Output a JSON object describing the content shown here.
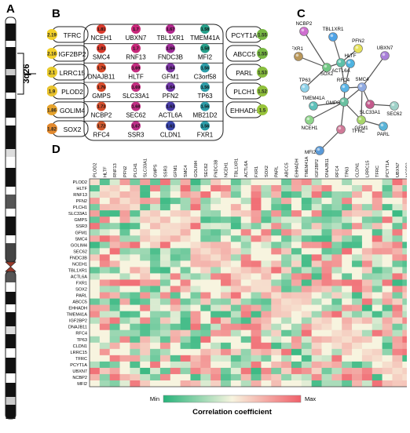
{
  "panel_labels": {
    "a": "A",
    "b": "B",
    "c": "C",
    "d": "D"
  },
  "chromosome": {
    "band_label": "3q26"
  },
  "cards": [
    {
      "left": "TFRC",
      "right": "PCYT1A",
      "left_badge": "2.19",
      "right_badge": "1.55",
      "left_color": "#f2d028",
      "right_color": "#78b843"
    },
    {
      "left": "IGF2BP2",
      "right": "ABCC5",
      "left_badge": "2.16",
      "right_badge": "1.55",
      "left_color": "#f2d028",
      "right_color": "#78b843"
    },
    {
      "left": "LRRC15",
      "right": "PARL",
      "left_badge": "2.1",
      "right_badge": "1.53",
      "left_color": "#e8ca2c",
      "right_color": "#88bd3e"
    },
    {
      "left": "PLOD2",
      "right": "PLCH1",
      "left_badge": "1.9",
      "right_badge": "1.52",
      "left_color": "#e8c22e",
      "right_color": "#90c03c"
    },
    {
      "left": "GOLIM4",
      "right": "EHHADH",
      "left_badge": "1.86",
      "right_badge": "1.5",
      "left_color": "#e6a32c",
      "right_color": "#98c43a"
    },
    {
      "left": "SOX2",
      "right": "",
      "left_badge": "1.82",
      "right_badge": "",
      "left_color": "#e38a2e",
      "right_color": ""
    }
  ],
  "grid_genes": [
    [
      "NCEH1",
      "UBXN7",
      "TBL1XR1",
      "TMEM41A"
    ],
    [
      "SMC4",
      "RNF13",
      "FNDC3B",
      "MFI2"
    ],
    [
      "DNAJB11",
      "HLTF",
      "GFM1",
      "C3orf58"
    ],
    [
      "GMPS",
      "SLC33A1",
      "PFN2",
      "TP63"
    ],
    [
      "NCBP2",
      "SEC62",
      "ACTL6A",
      "MB21D2"
    ],
    [
      "RFC4",
      "SSR3",
      "CLDN1",
      "FXR1"
    ]
  ],
  "grid_badges": [
    [
      "1.81",
      "1.7",
      "1.67",
      "1.58"
    ],
    [
      "1.81",
      "1.7",
      "1.66",
      "1.58"
    ],
    [
      "1.76",
      "1.69",
      "1.64",
      "1.56"
    ],
    [
      "1.76",
      "1.69",
      "1.64",
      "1.56"
    ],
    [
      "1.73",
      "1.68",
      "1.63",
      "1.56"
    ],
    [
      "1.72",
      "1.67",
      "1.61",
      "1.56"
    ]
  ],
  "grid_colors": [
    [
      "#d83a2c",
      "#c8287a",
      "#b0288c",
      "#27a08a"
    ],
    [
      "#d83a2c",
      "#c8287a",
      "#9c2c96",
      "#27a08a"
    ],
    [
      "#d84a2a",
      "#c42c80",
      "#7a33a0",
      "#2c9da8"
    ],
    [
      "#d84a2a",
      "#c42c80",
      "#6e36a6",
      "#2c9da8"
    ],
    [
      "#d44e2c",
      "#c02e84",
      "#4a3ca8",
      "#2c9da8"
    ],
    [
      "#d05a2e",
      "#bc2e88",
      "#3a46ac",
      "#2c9da8"
    ]
  ],
  "network": {
    "nodes": [
      {
        "id": "NCBP2",
        "color": "#cf6fd0"
      },
      {
        "id": "TBL1XR1",
        "color": "#4fa3e6"
      },
      {
        "id": "PFN2",
        "color": "#e6e25a"
      },
      {
        "id": "FXR1",
        "color": "#b9975a"
      },
      {
        "id": "HLTF",
        "color": "#4fb3e0"
      },
      {
        "id": "UBXN7",
        "color": "#a980d8"
      },
      {
        "id": "TP63",
        "color": "#8ed1e8"
      },
      {
        "id": "SOX2",
        "color": "#72c784"
      },
      {
        "id": "ACTL6A",
        "color": "#5ec0a8"
      },
      {
        "id": "RFC4",
        "color": "#5ab4e6"
      },
      {
        "id": "SMC4",
        "color": "#8fa9e0"
      },
      {
        "id": "TMEM41A",
        "color": "#5ec0ba"
      },
      {
        "id": "GMPS",
        "color": "#6ac0a0"
      },
      {
        "id": "SLC33A1",
        "color": "#c45a8c"
      },
      {
        "id": "SEC62",
        "color": "#9fd1c8"
      },
      {
        "id": "NCEH1",
        "color": "#8ed68a"
      },
      {
        "id": "GFM1",
        "color": "#a8d66a"
      },
      {
        "id": "PARL",
        "color": "#5ab4d8"
      },
      {
        "id": "TFRC",
        "color": "#d07a98"
      },
      {
        "id": "MFI2",
        "color": "#5a9ad8"
      }
    ],
    "edges": [
      [
        "NCBP2",
        "SOX2"
      ],
      [
        "TBL1XR1",
        "ACTL6A"
      ],
      [
        "PFN2",
        "ACTL6A"
      ],
      [
        "FXR1",
        "SOX2"
      ],
      [
        "TP63",
        "SOX2"
      ],
      [
        "SOX2",
        "ACTL6A"
      ],
      [
        "HLTF",
        "RFC4"
      ],
      [
        "ACTL6A",
        "RFC4"
      ],
      [
        "RFC4",
        "SMC4"
      ],
      [
        "RFC4",
        "GMPS"
      ],
      [
        "SMC4",
        "GMPS"
      ],
      [
        "TMEM41A",
        "GMPS"
      ],
      [
        "NCEH1",
        "GMPS"
      ],
      [
        "GMPS",
        "GFM1"
      ],
      [
        "GMPS",
        "TFRC"
      ],
      [
        "SMC4",
        "SLC33A1"
      ],
      [
        "SLC33A1",
        "SEC62"
      ],
      [
        "GFM1",
        "PARL"
      ],
      [
        "TFRC",
        "MFI2"
      ],
      [
        "SMC4",
        "GFM1"
      ],
      [
        "UBXN7",
        "SMC4"
      ]
    ]
  },
  "heatmap": {
    "genes": [
      "PLOD2",
      "HLTF",
      "RNF13",
      "PFN2",
      "PLCH1",
      "SLC33A1",
      "GMPS",
      "SSR3",
      "GFM1",
      "SMC4",
      "GOLIM4",
      "SEC62",
      "FNDC3B",
      "NCEH1",
      "TBL1XR1",
      "ACTL6A",
      "FXR1",
      "SOX2",
      "PARL",
      "ABCC5",
      "EHHADH",
      "TMEM41A",
      "IGF2BP2",
      "DNAJB11",
      "RFC4",
      "TP63",
      "CLDN1",
      "LRRC15",
      "TFRC",
      "PCYT1A",
      "UBXN7",
      "NCBP2",
      "MFI2"
    ],
    "legend_min": "Min",
    "legend_max": "Max",
    "legend_title": "Correlation coefficient",
    "colors": {
      "min": "#27b37a",
      "mid": "#f7f4df",
      "max": "#f0606a"
    }
  }
}
